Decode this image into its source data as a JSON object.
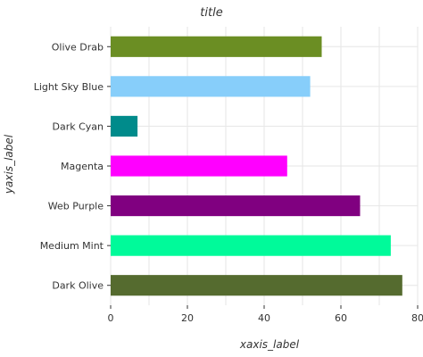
{
  "chart_data": {
    "type": "bar",
    "orientation": "horizontal",
    "title": "title",
    "xlabel": "xaxis_label",
    "ylabel": "yaxis_label",
    "xlim": [
      0,
      80
    ],
    "xticks": [
      0,
      20,
      40,
      60,
      80
    ],
    "grid": true,
    "categories": [
      "Dark Olive",
      "Medium Mint",
      "Web Purple",
      "Magenta",
      "Dark Cyan",
      "Light Sky Blue",
      "Olive Drab"
    ],
    "values": [
      76,
      73,
      65,
      46,
      7,
      52,
      55
    ],
    "colors": [
      "#556b2f",
      "#00fa9a",
      "#800080",
      "#ff00ff",
      "#008b8b",
      "#87cefa",
      "#6b8e23"
    ]
  }
}
